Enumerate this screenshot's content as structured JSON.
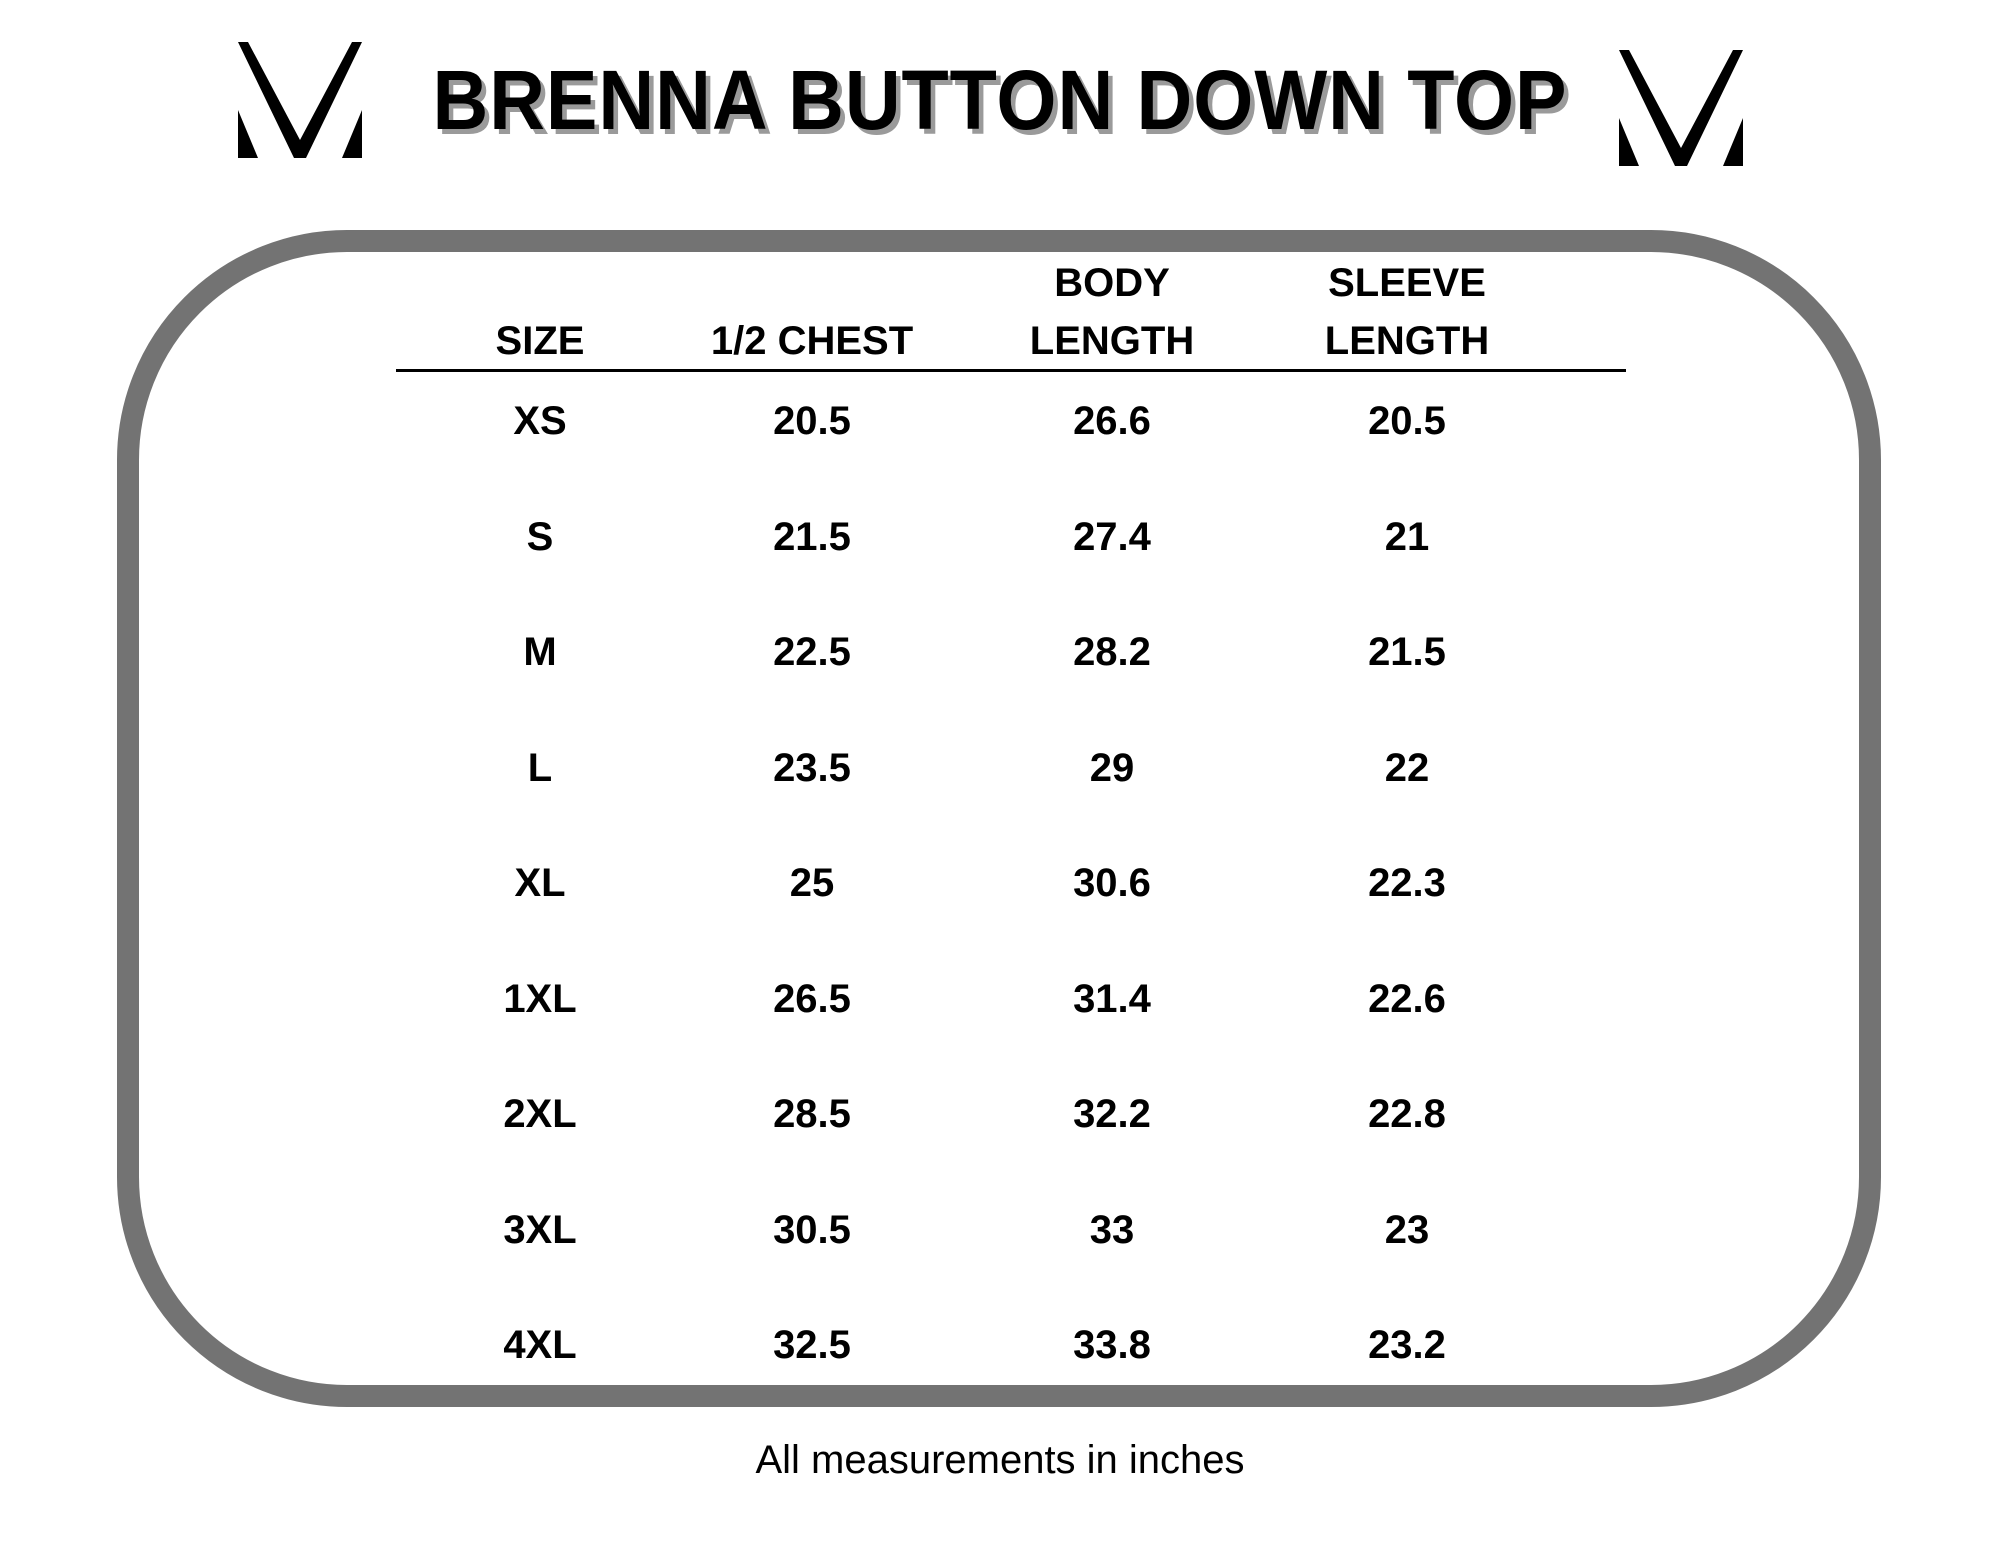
{
  "title": "BRENNA BUTTON DOWN TOP",
  "logo": {
    "icon": "mv-monogram-icon",
    "color": "#000000"
  },
  "frame_color": "#737373",
  "table": {
    "headers": [
      {
        "line1": "",
        "line2": "SIZE"
      },
      {
        "line1": "",
        "line2": "1/2 CHEST"
      },
      {
        "line1": "BODY",
        "line2": "LENGTH"
      },
      {
        "line1": "SLEEVE",
        "line2": "LENGTH"
      }
    ],
    "rows": [
      [
        "XS",
        "20.5",
        "26.6",
        "20.5"
      ],
      [
        "S",
        "21.5",
        "27.4",
        "21"
      ],
      [
        "M",
        "22.5",
        "28.2",
        "21.5"
      ],
      [
        "L",
        "23.5",
        "29",
        "22"
      ],
      [
        "XL",
        "25",
        "30.6",
        "22.3"
      ],
      [
        "1XL",
        "26.5",
        "31.4",
        "22.6"
      ],
      [
        "2XL",
        "28.5",
        "32.2",
        "22.8"
      ],
      [
        "3XL",
        "30.5",
        "33",
        "23"
      ],
      [
        "4XL",
        "32.5",
        "33.8",
        "23.2"
      ]
    ]
  },
  "footer": "All measurements in inches"
}
